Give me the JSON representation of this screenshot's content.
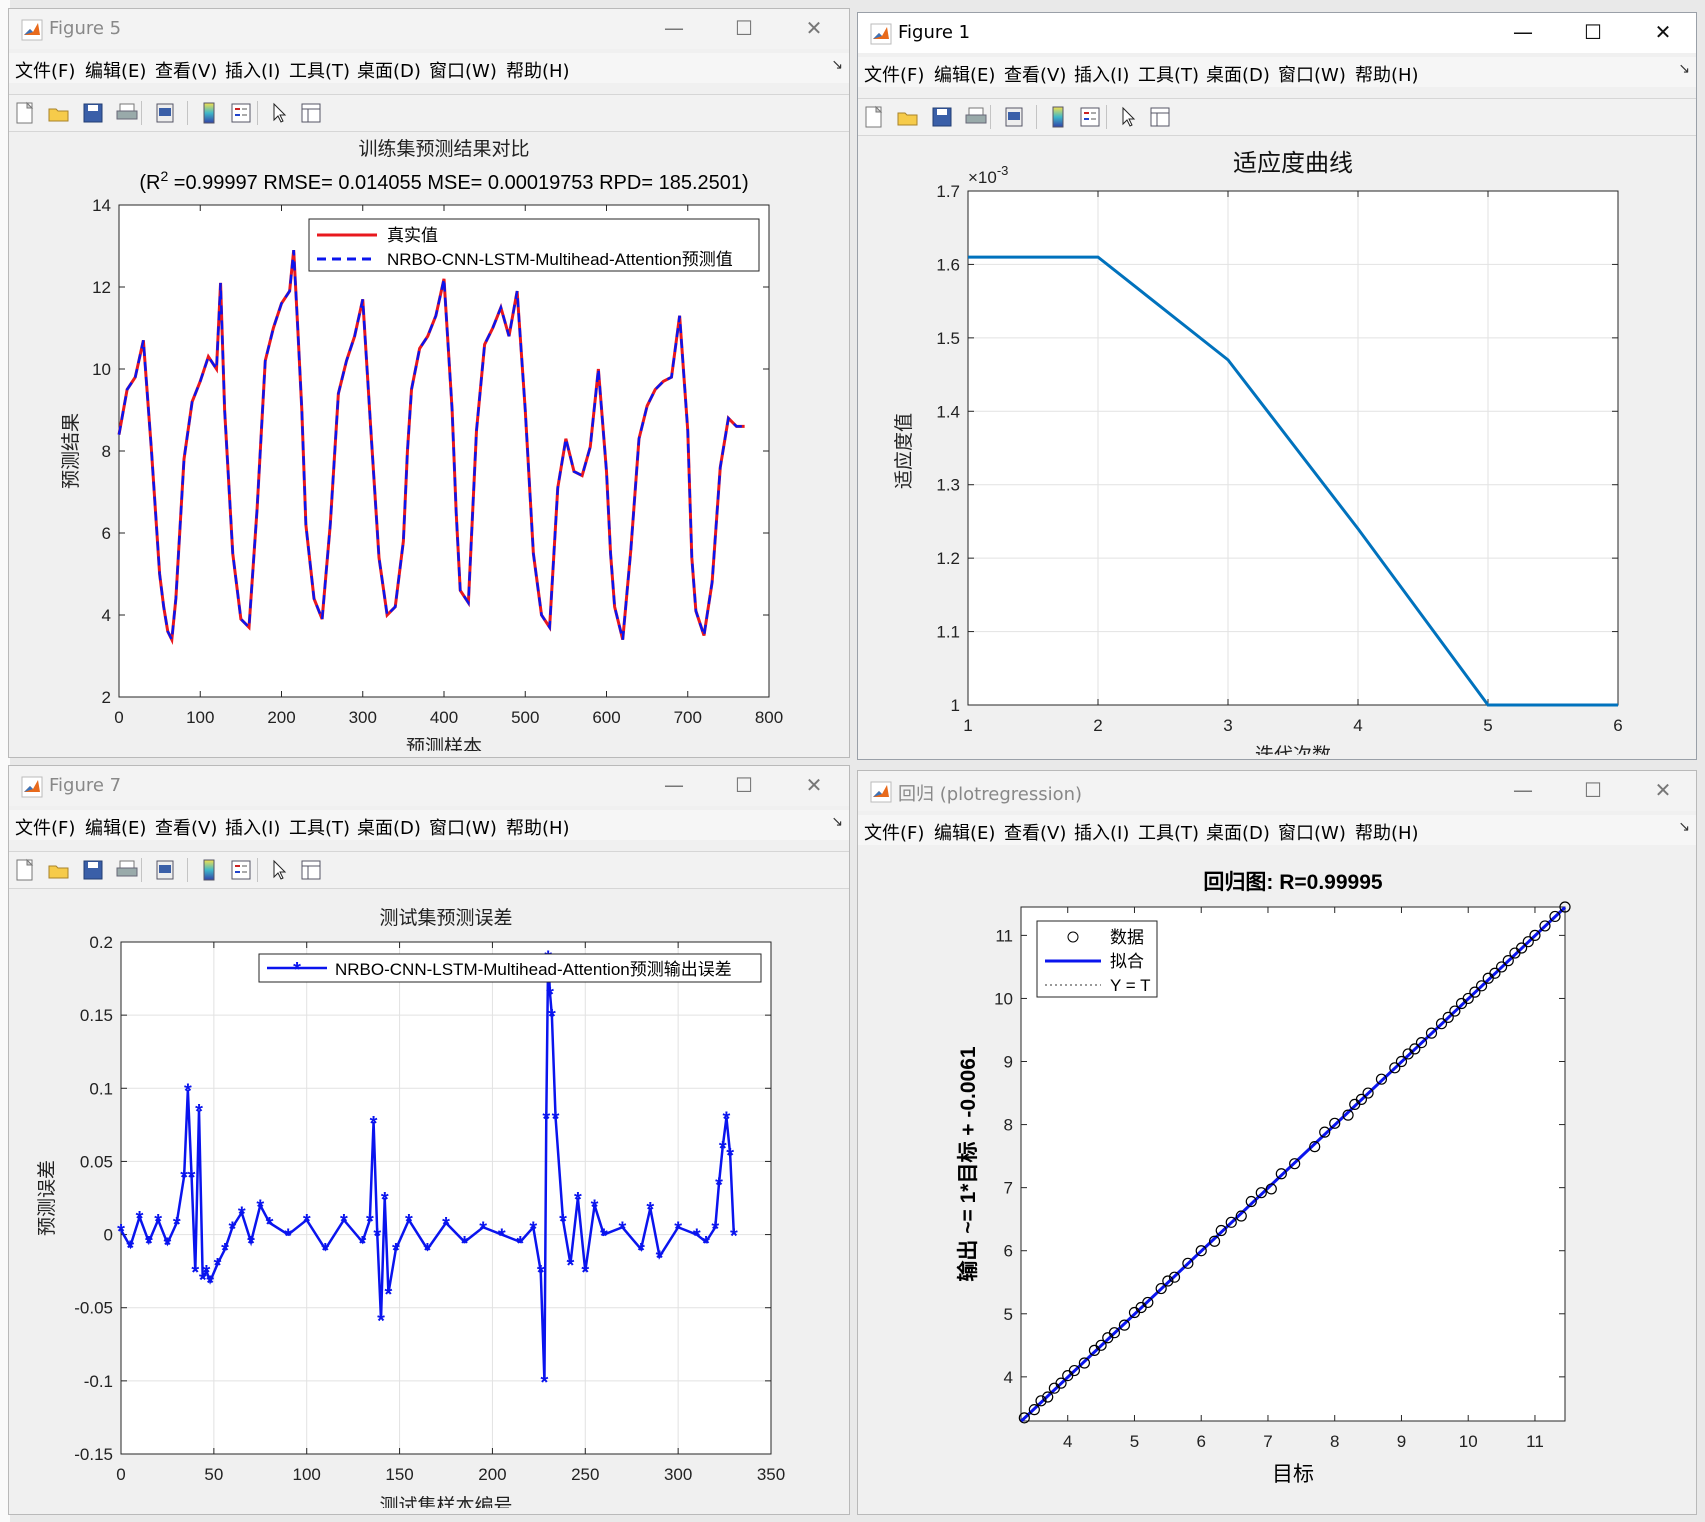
{
  "menu": [
    "文件(F)",
    "编辑(E)",
    "查看(V)",
    "插入(I)",
    "工具(T)",
    "桌面(D)",
    "窗口(W)",
    "帮助(H)"
  ],
  "icons": [
    "new-file-icon",
    "open-folder-icon",
    "save-icon",
    "print-icon",
    "print-preview-icon",
    "colorbar-icon",
    "legend-icon",
    "pointer-icon",
    "property-editor-icon"
  ],
  "colors": {
    "red": "#e8181e",
    "blue": "#0a14ee",
    "matlab_blue": "#0072bd",
    "black": "#000000"
  },
  "windows": {
    "fig5": {
      "title": "Figure 5",
      "active": false
    },
    "fig1": {
      "title": "Figure 1",
      "active": true
    },
    "fig7": {
      "title": "Figure 7",
      "active": false
    },
    "reg": {
      "title": "回归 (plotregression)",
      "active": false
    }
  },
  "fig5_plot": {
    "title": "训练集预测结果对比",
    "subtitle": "(R",
    "subtitle_sup": "2",
    "subtitle_rest": " =0.99997 RMSE= 0.014055 MSE= 0.00019753 RPD= 185.2501)",
    "xlabel": "预测样本",
    "ylabel": "预测结果",
    "legend": [
      "真实值",
      "NRBO-CNN-LSTM-Multihead-Attention预测值"
    ]
  },
  "fig1_plot": {
    "title": "适应度曲线",
    "xlabel": "迭代次数",
    "ylabel": "适应度值",
    "exponent_label": "×10",
    "exponent_sup": "-3"
  },
  "fig7_plot": {
    "title": "测试集预测误差",
    "xlabel": "测试集样本编号",
    "ylabel": "预测误差",
    "legend": [
      "NRBO-CNN-LSTM-Multihead-Attention预测输出误差"
    ]
  },
  "reg_plot": {
    "title": "回归图: R=0.99995",
    "xlabel": "目标",
    "ylabel": "输出 ~= 1*目标 + -0.0061",
    "legend": [
      "数据",
      "拟合",
      "Y = T"
    ]
  },
  "chart_data": [
    {
      "type": "line",
      "title": "训练集预测结果对比",
      "xlabel": "预测样本",
      "ylabel": "预测结果",
      "xlim": [
        0,
        800
      ],
      "ylim": [
        2,
        14
      ],
      "xticks": [
        0,
        100,
        200,
        300,
        400,
        500,
        600,
        700,
        800
      ],
      "yticks": [
        2,
        4,
        6,
        8,
        10,
        12,
        14
      ],
      "grid": false,
      "legend_position": "top-right",
      "x": [
        0,
        10,
        20,
        30,
        40,
        50,
        55,
        60,
        65,
        70,
        80,
        90,
        100,
        110,
        120,
        125,
        130,
        140,
        150,
        160,
        170,
        180,
        190,
        200,
        210,
        215,
        220,
        225,
        230,
        240,
        250,
        260,
        270,
        280,
        290,
        300,
        310,
        320,
        330,
        340,
        350,
        355,
        360,
        370,
        380,
        390,
        400,
        410,
        415,
        420,
        430,
        440,
        450,
        460,
        470,
        480,
        490,
        500,
        510,
        520,
        530,
        540,
        550,
        560,
        570,
        580,
        590,
        600,
        605,
        610,
        620,
        630,
        640,
        650,
        660,
        670,
        680,
        690,
        700,
        705,
        710,
        720,
        730,
        740,
        750,
        760,
        770
      ],
      "series": [
        {
          "name": "真实值",
          "values": [
            8.4,
            9.5,
            9.8,
            10.7,
            8.0,
            5.0,
            4.2,
            3.6,
            3.4,
            4.4,
            7.8,
            9.2,
            9.7,
            10.3,
            10.0,
            12.1,
            9.0,
            5.5,
            3.9,
            3.7,
            6.6,
            10.2,
            11.0,
            11.6,
            11.9,
            12.9,
            11.0,
            9.0,
            6.2,
            4.4,
            3.9,
            6.2,
            9.4,
            10.2,
            10.8,
            11.7,
            8.5,
            5.4,
            4.0,
            4.2,
            5.8,
            8.0,
            9.5,
            10.5,
            10.8,
            11.3,
            12.2,
            9.0,
            6.5,
            4.6,
            4.3,
            8.5,
            10.6,
            11.0,
            11.5,
            10.8,
            11.9,
            9.0,
            5.5,
            4.0,
            3.7,
            7.1,
            8.3,
            7.5,
            7.4,
            8.1,
            10.0,
            7.5,
            5.5,
            4.2,
            3.4,
            5.6,
            8.3,
            9.1,
            9.5,
            9.7,
            9.8,
            11.3,
            8.5,
            5.4,
            4.1,
            3.5,
            4.8,
            7.6,
            8.8,
            8.6,
            8.6
          ]
        },
        {
          "name": "NRBO-CNN-LSTM-Multihead-Attention预测值",
          "values": [
            8.4,
            9.5,
            9.8,
            10.7,
            8.0,
            5.0,
            4.2,
            3.6,
            3.4,
            4.4,
            7.8,
            9.2,
            9.7,
            10.3,
            10.0,
            12.1,
            9.0,
            5.5,
            3.9,
            3.7,
            6.6,
            10.2,
            11.0,
            11.6,
            11.9,
            12.9,
            11.0,
            9.0,
            6.2,
            4.4,
            3.9,
            6.2,
            9.4,
            10.2,
            10.8,
            11.7,
            8.5,
            5.4,
            4.0,
            4.2,
            5.8,
            8.0,
            9.5,
            10.5,
            10.8,
            11.3,
            12.2,
            9.0,
            6.5,
            4.6,
            4.3,
            8.5,
            10.6,
            11.0,
            11.5,
            10.8,
            11.9,
            9.0,
            5.5,
            4.0,
            3.7,
            7.1,
            8.3,
            7.5,
            7.4,
            8.1,
            10.0,
            7.5,
            5.5,
            4.2,
            3.4,
            5.6,
            8.3,
            9.1,
            9.5,
            9.7,
            9.8,
            11.3,
            8.5,
            5.4,
            4.1,
            3.5,
            4.8,
            7.6,
            8.8,
            8.6,
            8.6
          ]
        }
      ]
    },
    {
      "type": "line",
      "title": "适应度曲线",
      "xlabel": "迭代次数",
      "ylabel": "适应度值",
      "xlim": [
        1,
        6
      ],
      "ylim": [
        1,
        1.7
      ],
      "xticks": [
        1,
        2,
        3,
        4,
        5,
        6
      ],
      "yticks": [
        1,
        1.1,
        1.2,
        1.3,
        1.4,
        1.5,
        1.6,
        1.7
      ],
      "y_scale_exponent": -3,
      "grid": true,
      "x": [
        1,
        2,
        3,
        4,
        5,
        6
      ],
      "series": [
        {
          "values": [
            1.61,
            1.61,
            1.47,
            1.24,
            1.0,
            1.0
          ]
        }
      ]
    },
    {
      "type": "line",
      "title": "测试集预测误差",
      "xlabel": "测试集样本编号",
      "ylabel": "预测误差",
      "xlim": [
        0,
        350
      ],
      "ylim": [
        -0.15,
        0.2
      ],
      "xticks": [
        0,
        50,
        100,
        150,
        200,
        250,
        300,
        350
      ],
      "yticks": [
        -0.15,
        -0.1,
        -0.05,
        0,
        0.05,
        0.1,
        0.15,
        0.2
      ],
      "grid": true,
      "legend_position": "top-right",
      "x": [
        0,
        5,
        10,
        15,
        20,
        25,
        30,
        34,
        36,
        38,
        40,
        42,
        44,
        46,
        48,
        52,
        56,
        60,
        65,
        70,
        75,
        80,
        90,
        100,
        110,
        120,
        130,
        134,
        136,
        138,
        140,
        142,
        144,
        148,
        155,
        165,
        175,
        185,
        195,
        205,
        215,
        222,
        226,
        228,
        229,
        230,
        231,
        232,
        234,
        238,
        242,
        246,
        250,
        255,
        260,
        270,
        280,
        285,
        290,
        300,
        310,
        315,
        320,
        322,
        324,
        326,
        328,
        330
      ],
      "series": [
        {
          "name": "NRBO-CNN-LSTM-Multihead-Attention预测输出误差",
          "values": [
            0.003,
            -0.008,
            0.012,
            -0.005,
            0.01,
            -0.006,
            0.008,
            0.04,
            0.099,
            0.04,
            -0.025,
            0.085,
            -0.03,
            -0.025,
            -0.032,
            -0.02,
            -0.01,
            0.005,
            0.015,
            -0.005,
            0.02,
            0.008,
            0.0,
            0.01,
            -0.01,
            0.01,
            -0.005,
            0.01,
            0.077,
            0.0,
            -0.058,
            0.025,
            -0.04,
            -0.01,
            0.01,
            -0.01,
            0.008,
            -0.005,
            0.005,
            0.0,
            -0.005,
            0.005,
            -0.025,
            -0.1,
            0.08,
            0.19,
            0.165,
            0.15,
            0.08,
            0.01,
            -0.02,
            0.025,
            -0.025,
            0.02,
            0.0,
            0.005,
            -0.01,
            0.018,
            -0.015,
            0.005,
            0.0,
            -0.005,
            0.005,
            0.035,
            0.06,
            0.08,
            0.055,
            0.0
          ]
        }
      ]
    },
    {
      "type": "scatter",
      "title": "回归图: R=0.99995",
      "xlabel": "目标",
      "ylabel": "输出 ~= 1*目标 + -0.0061",
      "xlim": [
        3.3,
        11.45
      ],
      "ylim": [
        3.3,
        11.45
      ],
      "xticks": [
        4,
        5,
        6,
        7,
        8,
        9,
        10,
        11
      ],
      "yticks": [
        4,
        5,
        6,
        7,
        8,
        9,
        10,
        11
      ],
      "legend_position": "top-left",
      "fit": {
        "slope": 1,
        "intercept": -0.0061
      },
      "x": [
        3.35,
        3.5,
        3.6,
        3.7,
        3.8,
        3.9,
        4.0,
        4.1,
        4.25,
        4.4,
        4.5,
        4.6,
        4.7,
        4.85,
        5.0,
        5.1,
        5.2,
        5.4,
        5.5,
        5.6,
        5.8,
        6.0,
        6.2,
        6.3,
        6.45,
        6.6,
        6.75,
        6.9,
        7.05,
        7.2,
        7.4,
        7.7,
        7.85,
        8.0,
        8.2,
        8.3,
        8.4,
        8.5,
        8.7,
        8.9,
        9.0,
        9.1,
        9.2,
        9.3,
        9.45,
        9.6,
        9.7,
        9.8,
        9.9,
        10.0,
        10.1,
        10.2,
        10.3,
        10.4,
        10.5,
        10.6,
        10.7,
        10.8,
        10.9,
        11.0,
        11.15,
        11.3,
        11.45
      ],
      "y": [
        3.35,
        3.48,
        3.62,
        3.68,
        3.82,
        3.9,
        4.02,
        4.1,
        4.22,
        4.42,
        4.5,
        4.62,
        4.7,
        4.82,
        5.02,
        5.1,
        5.18,
        5.4,
        5.52,
        5.58,
        5.8,
        6.0,
        6.15,
        6.32,
        6.45,
        6.55,
        6.78,
        6.92,
        6.98,
        7.22,
        7.38,
        7.65,
        7.88,
        8.02,
        8.15,
        8.32,
        8.4,
        8.5,
        8.72,
        8.9,
        9.0,
        9.12,
        9.2,
        9.3,
        9.45,
        9.6,
        9.7,
        9.8,
        9.92,
        10.0,
        10.1,
        10.2,
        10.32,
        10.4,
        10.5,
        10.6,
        10.72,
        10.8,
        10.9,
        11.0,
        11.15,
        11.3,
        11.45
      ]
    }
  ]
}
